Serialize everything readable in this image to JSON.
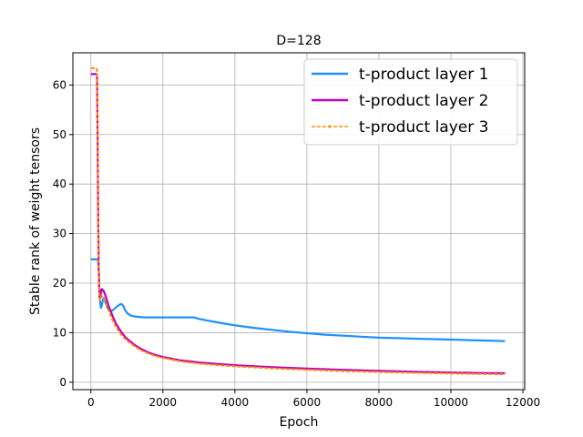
{
  "chart_data": {
    "type": "line",
    "title": "D=128",
    "xlabel": "Epoch",
    "ylabel": "Stable rank of weight tensors",
    "xlim": [
      -500,
      12050
    ],
    "ylim": [
      -1.5,
      66.5
    ],
    "xticks": [
      0,
      2000,
      4000,
      6000,
      8000,
      10000,
      12000
    ],
    "yticks": [
      0,
      10,
      20,
      30,
      40,
      50,
      60
    ],
    "grid": true,
    "legend_position": "top-right",
    "series": [
      {
        "name": "t-product layer 1",
        "color": "#1e90ff",
        "style": "solid",
        "x": [
          0,
          50,
          100,
          150,
          180,
          200,
          220,
          240,
          260,
          280,
          300,
          330,
          360,
          400,
          450,
          500,
          550,
          600,
          650,
          700,
          750,
          800,
          850,
          900,
          950,
          1000,
          1100,
          1200,
          1300,
          1500,
          1800,
          2000,
          2300,
          2600,
          2850,
          2900,
          3000,
          3200,
          3500,
          4000,
          4500,
          5000,
          5500,
          6000,
          6500,
          7000,
          7500,
          8000,
          8500,
          9000,
          9500,
          10000,
          10500,
          11000,
          11500
        ],
        "y": [
          24.8,
          24.8,
          24.8,
          24.8,
          24.8,
          24.6,
          22,
          17.5,
          16,
          15,
          15.4,
          16.6,
          17,
          16.2,
          15.2,
          14.5,
          14.3,
          14.5,
          14.8,
          15.1,
          15.4,
          15.7,
          15.8,
          15.4,
          14.6,
          14,
          13.5,
          13.3,
          13.2,
          13.1,
          13.1,
          13.1,
          13.1,
          13.1,
          13.1,
          13.0,
          12.8,
          12.5,
          12.1,
          11.5,
          11.0,
          10.6,
          10.2,
          9.9,
          9.6,
          9.4,
          9.2,
          9.0,
          8.9,
          8.8,
          8.7,
          8.6,
          8.5,
          8.4,
          8.3
        ]
      },
      {
        "name": "t-product layer 2",
        "color": "#bf00bf",
        "style": "solid",
        "x": [
          0,
          50,
          100,
          150,
          170,
          185,
          200,
          215,
          230,
          250,
          270,
          300,
          350,
          400,
          450,
          500,
          600,
          700,
          800,
          900,
          1000,
          1200,
          1400,
          1600,
          1800,
          2000,
          2500,
          3000,
          3500,
          4000,
          4500,
          5000,
          6000,
          7000,
          8000,
          9000,
          10000,
          11000,
          11500
        ],
        "y": [
          62.2,
          62.2,
          62.2,
          62.2,
          62,
          50,
          35,
          24,
          19,
          17,
          17.6,
          18.8,
          18.5,
          17.6,
          16.5,
          15.3,
          13.4,
          11.8,
          10.6,
          9.6,
          8.8,
          7.6,
          6.7,
          6.0,
          5.5,
          5.1,
          4.4,
          4.0,
          3.7,
          3.45,
          3.25,
          3.05,
          2.75,
          2.5,
          2.3,
          2.1,
          1.95,
          1.85,
          1.8
        ]
      },
      {
        "name": "t-product layer 3",
        "color": "#ff8c00",
        "style": "dashed",
        "x": [
          0,
          50,
          100,
          150,
          170,
          185,
          200,
          215,
          230,
          250,
          270,
          300,
          350,
          400,
          450,
          500,
          600,
          700,
          800,
          900,
          1000,
          1200,
          1400,
          1600,
          1800,
          2000,
          2500,
          3000,
          3500,
          4000,
          4500,
          5000,
          6000,
          7000,
          8000,
          9000,
          10000,
          11000,
          11500
        ],
        "y": [
          63.4,
          63.4,
          63.4,
          63.4,
          63,
          52,
          37,
          25,
          19,
          16.5,
          16.8,
          17.4,
          17.1,
          16.3,
          15.3,
          14.3,
          12.5,
          11.1,
          10.0,
          9.1,
          8.4,
          7.3,
          6.4,
          5.8,
          5.3,
          4.9,
          4.2,
          3.75,
          3.45,
          3.2,
          3.0,
          2.8,
          2.5,
          2.25,
          2.05,
          1.9,
          1.75,
          1.65,
          1.6
        ]
      }
    ]
  }
}
